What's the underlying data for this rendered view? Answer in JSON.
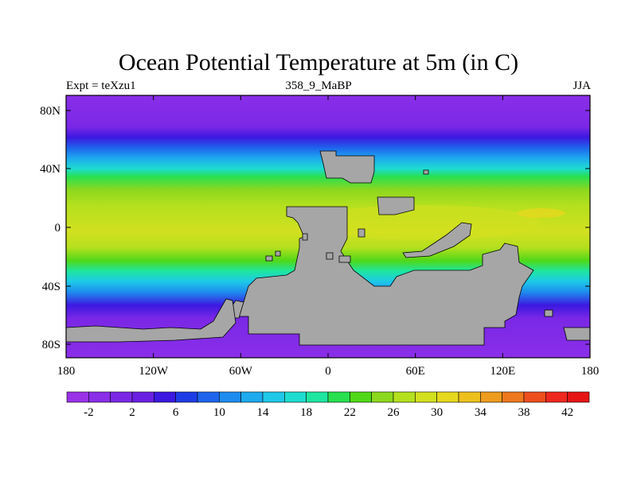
{
  "title": "Ocean Potential Temperature at 5m (in C)",
  "subtitle_left": "Expt = teXzu1",
  "subtitle_center": "358_9_MaBP",
  "subtitle_right": "JJA",
  "lat_ticks": [
    "80N",
    "40N",
    "0",
    "40S",
    "80S"
  ],
  "lon_ticks": [
    "180",
    "120W",
    "60W",
    "0",
    "60E",
    "120E",
    "180"
  ],
  "colorbar": {
    "labels": [
      "-2",
      "2",
      "6",
      "10",
      "14",
      "18",
      "22",
      "26",
      "30",
      "34",
      "38",
      "42"
    ],
    "colors": [
      "#9a32e8",
      "#8a2ee8",
      "#7a28e6",
      "#6a20e2",
      "#3c18e0",
      "#1e3ce6",
      "#1e64ec",
      "#1e8cee",
      "#1eaaee",
      "#1ec8e8",
      "#1edcd0",
      "#1ee6a0",
      "#28e050",
      "#50d818",
      "#8cd81e",
      "#b4e01e",
      "#d2e020",
      "#e6d81e",
      "#eec01e",
      "#ee9c1e",
      "#ee781e",
      "#ee4e1e",
      "#ee281e",
      "#e61414"
    ]
  },
  "colors": {
    "land": "#a6a6a6",
    "background": "#ffffff"
  }
}
